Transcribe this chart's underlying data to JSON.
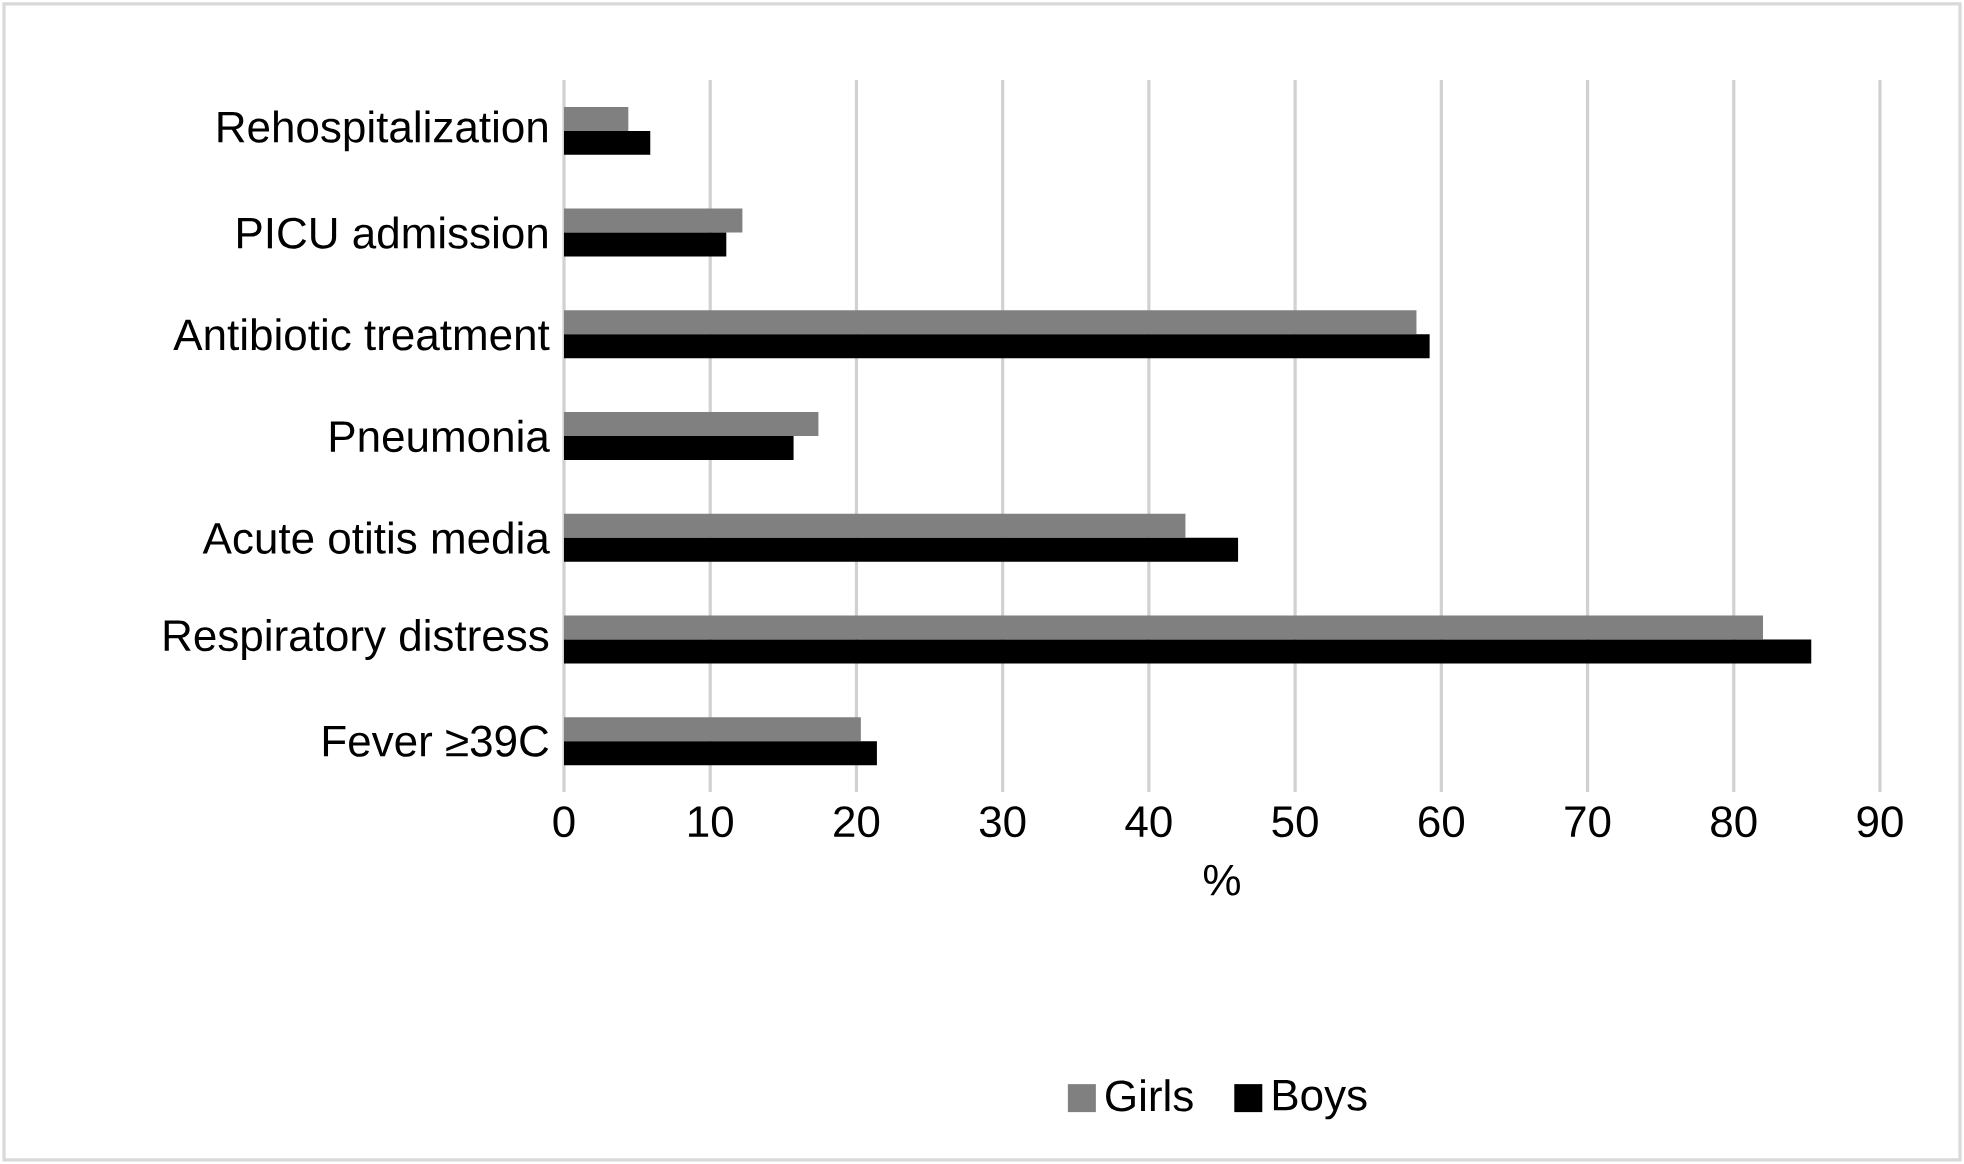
{
  "chart_data": {
    "type": "bar",
    "orientation": "horizontal",
    "xlabel": "%",
    "categories": [
      "Rehospitalization",
      "PICU admission",
      "Antibiotic treatment",
      "Pneumonia",
      "Acute otitis media",
      "Respiratory distress",
      "Fever ≥39C"
    ],
    "series": [
      {
        "name": "Girls",
        "color": "#808080",
        "values": [
          4.4,
          12.2,
          58.3,
          17.4,
          42.5,
          82.0,
          20.3
        ]
      },
      {
        "name": "Boys",
        "color": "#000000",
        "values": [
          5.9,
          11.1,
          59.2,
          15.7,
          46.1,
          85.3,
          21.4
        ]
      }
    ],
    "xlim": [
      0,
      90
    ],
    "xticks": [
      0,
      10,
      20,
      30,
      40,
      50,
      60,
      70,
      80,
      90
    ],
    "grid": "x",
    "legend": "bottom"
  }
}
